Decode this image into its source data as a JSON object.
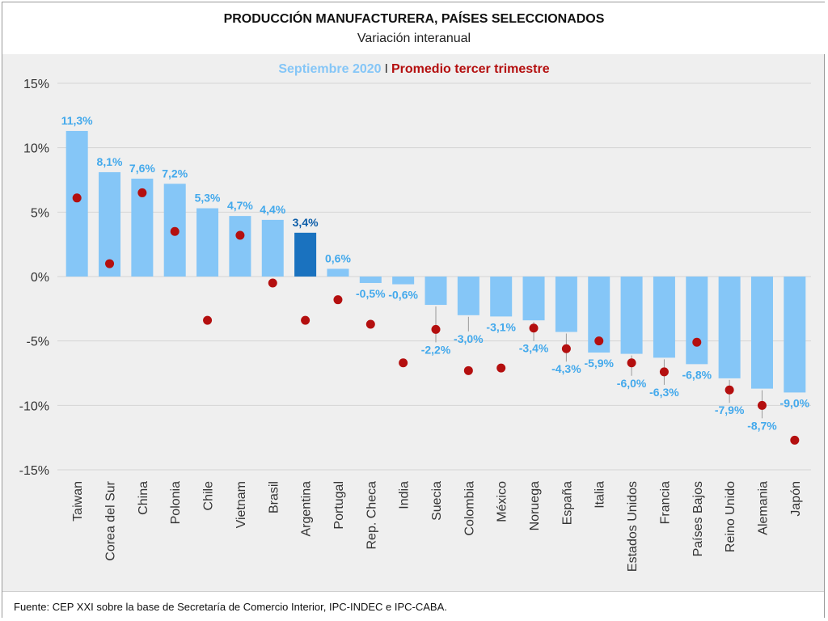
{
  "header": {
    "title": "PRODUCCIÓN MANUFACTURERA, PAÍSES SELECCIONADOS",
    "subtitle": "Variación interanual"
  },
  "legend": {
    "series1": "Septiembre 2020",
    "separator": "I",
    "series2": "Promedio tercer trimestre"
  },
  "footer": {
    "source": "Fuente: CEP XXI sobre la base de Secretaría de Comercio Interior, IPC-INDEC e IPC-CABA."
  },
  "colors": {
    "bar": "#85c6f7",
    "bar_highlight": "#1a72bf",
    "dot": "#b40f0f",
    "bar_label": "#43a9ec",
    "bar_label_highlight": "#0d5ea9",
    "legend_series2": "#b40f0f",
    "grid": "#d4d4d4"
  },
  "chart_data": {
    "type": "bar",
    "title": "PRODUCCIÓN MANUFACTURERA, PAÍSES SELECCIONADOS",
    "subtitle": "Variación interanual",
    "categories": [
      "Taiwan",
      "Corea del Sur",
      "China",
      "Polonia",
      "Chile",
      "Vietnam",
      "Brasil",
      "Argentina",
      "Portugal",
      "Rep. Checa",
      "India",
      "Suecia",
      "Colombia",
      "México",
      "Noruega",
      "España",
      "Italia",
      "Estados Unidos",
      "Francia",
      "Países Bajos",
      "Reino Unido",
      "Alemania",
      "Japón"
    ],
    "highlight_category": "Argentina",
    "series": [
      {
        "name": "Septiembre 2020",
        "kind": "bar",
        "values": [
          11.3,
          8.1,
          7.6,
          7.2,
          5.3,
          4.7,
          4.4,
          3.4,
          0.6,
          -0.5,
          -0.6,
          -2.2,
          -3.0,
          -3.1,
          -3.4,
          -4.3,
          -5.9,
          -6.0,
          -6.3,
          -6.8,
          -7.9,
          -8.7,
          -9.0
        ],
        "labels": [
          "11,3%",
          "8,1%",
          "7,6%",
          "7,2%",
          "5,3%",
          "4,7%",
          "4,4%",
          "3,4%",
          "0,6%",
          "-0,5%",
          "-0,6%",
          "-2,2%",
          "-3,0%",
          "-3,1%",
          "-3,4%",
          "-4,3%",
          "-5,9%",
          "-6,0%",
          "-6,3%",
          "-6,8%",
          "-7,9%",
          "-8,7%",
          "-9,0%"
        ]
      },
      {
        "name": "Promedio tercer trimestre",
        "kind": "dot",
        "values": [
          6.1,
          1.0,
          6.5,
          3.5,
          -3.4,
          3.2,
          -0.5,
          -3.4,
          -1.8,
          -3.7,
          -6.7,
          -4.1,
          -7.3,
          -7.1,
          -4.0,
          -5.6,
          -5.0,
          -6.7,
          -7.4,
          -5.1,
          -8.8,
          -10.0,
          -12.7
        ]
      }
    ],
    "ylim": [
      -15,
      15
    ],
    "yticks": [
      -15,
      -10,
      -5,
      0,
      5,
      10,
      15
    ],
    "ytick_labels": [
      "-15%",
      "-10%",
      "-5%",
      "0%",
      "5%",
      "10%",
      "15%"
    ],
    "grid": true,
    "legend_position": "top-center"
  }
}
